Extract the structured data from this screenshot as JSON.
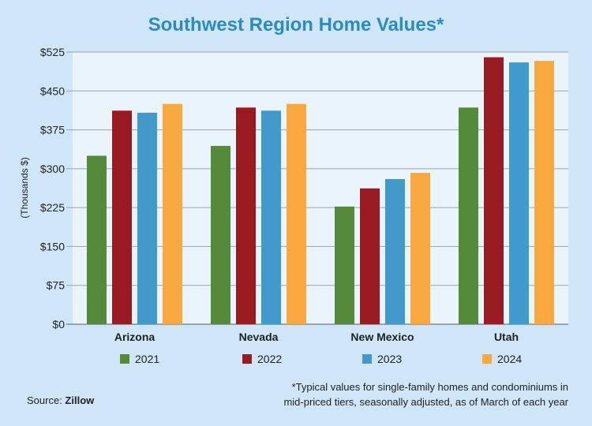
{
  "title": "Southwest Region Home Values*",
  "source": {
    "label": "Source: ",
    "name": "Zillow"
  },
  "footnote": {
    "line1": "*Typical values for single-family homes and condominiums in",
    "line2": "mid-priced tiers, seasonally adjusted, as of March of each year"
  },
  "chart_data": {
    "type": "bar",
    "title": "Southwest Region Home Values*",
    "ylabel": "(Thousands $)",
    "xlabel": "",
    "ylim": [
      0,
      525
    ],
    "yticks": [
      "$0",
      "$75",
      "$150",
      "$225",
      "$300",
      "$375",
      "$450",
      "$525"
    ],
    "ytick_values": [
      0,
      75,
      150,
      225,
      300,
      375,
      450,
      525
    ],
    "grid": true,
    "legend_position": "bottom",
    "categories": [
      "Arizona",
      "Nevada",
      "New Mexico",
      "Utah"
    ],
    "series": [
      {
        "name": "2021",
        "color": "#558a3b",
        "values": [
          325,
          344,
          227,
          418
        ]
      },
      {
        "name": "2022",
        "color": "#981b22",
        "values": [
          412,
          418,
          262,
          515
        ]
      },
      {
        "name": "2023",
        "color": "#4199cc",
        "values": [
          408,
          412,
          280,
          505
        ]
      },
      {
        "name": "2024",
        "color": "#f9a83f",
        "values": [
          425,
          425,
          292,
          508
        ]
      }
    ]
  }
}
